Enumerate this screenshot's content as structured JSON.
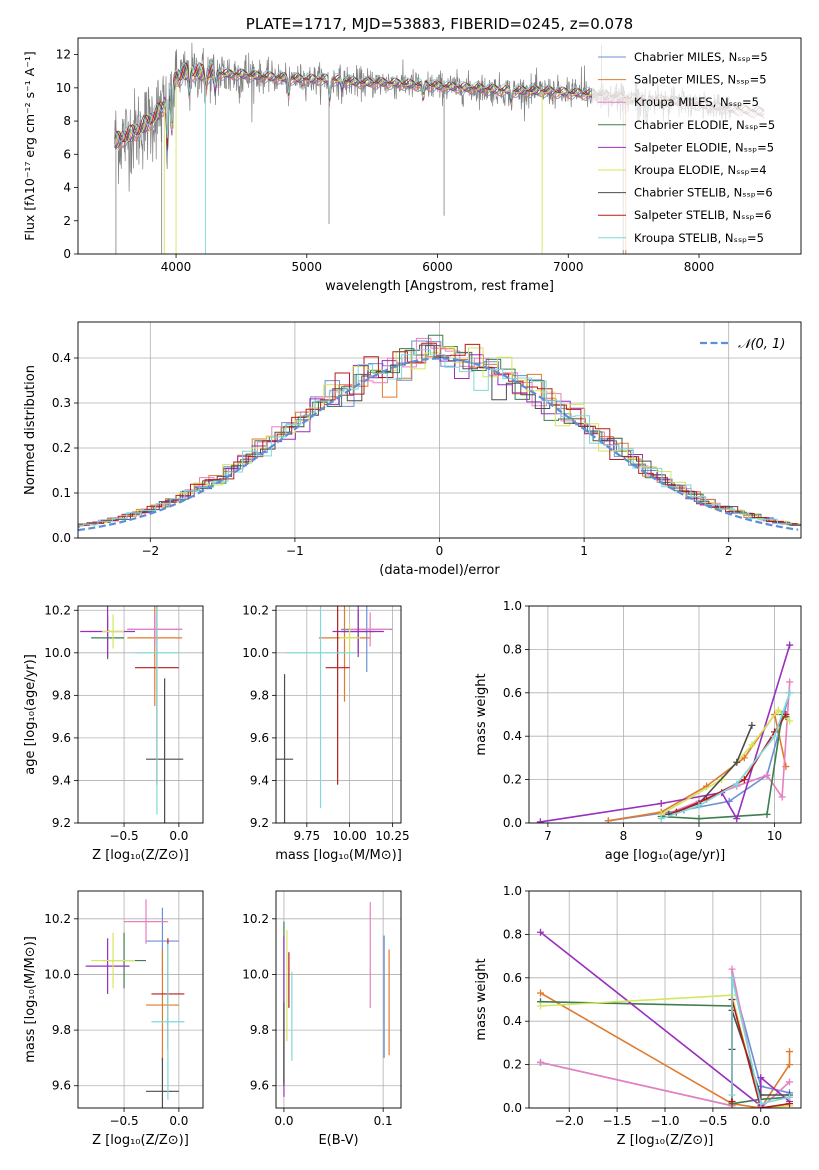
{
  "chart_data": [
    {
      "id": "spectrum",
      "type": "line",
      "title": "PLATE=1717, MJD=53883, FIBERID=0245, z=0.078",
      "xlabel": "wavelength [Angstrom, rest frame]",
      "ylabel": "Flux [fλ10⁻¹⁷ erg cm⁻² s⁻¹ A⁻¹]",
      "xlim": [
        3250,
        8780
      ],
      "ylim": [
        0,
        13
      ],
      "xticks": [
        4000,
        5000,
        6000,
        7000,
        8000
      ],
      "yticks": [
        0,
        2,
        4,
        6,
        8,
        10,
        12
      ],
      "grid": false,
      "legend_position": "top-right",
      "legend": [
        {
          "name": "Chabrier MILES, Nₛₛₚ=5",
          "color": "#6b8fd6"
        },
        {
          "name": "Salpeter MILES, Nₛₛₚ=5",
          "color": "#e07b2e"
        },
        {
          "name": "Kroupa MILES, Nₛₛₚ=5",
          "color": "#e87fbf"
        },
        {
          "name": "Chabrier ELODIE, Nₛₛₚ=5",
          "color": "#3e7d4e"
        },
        {
          "name": "Salpeter ELODIE, Nₛₛₚ=5",
          "color": "#9a2fbd"
        },
        {
          "name": "Kroupa ELODIE, Nₛₛₚ=4",
          "color": "#d4e65c"
        },
        {
          "name": "Chabrier STELIB, Nₛₛₚ=6",
          "color": "#4d4d4d"
        },
        {
          "name": "Salpeter STELIB, Nₛₛₚ=6",
          "color": "#b51d1d"
        },
        {
          "name": "Kroupa STELIB, Nₛₛₚ=5",
          "color": "#7fd8dc"
        }
      ],
      "data_color": "#808080",
      "continuum": {
        "x": [
          3530,
          3600,
          3700,
          3800,
          3900,
          4000,
          4100,
          4200,
          4300,
          4400,
          4500,
          4600,
          4800,
          5000,
          5200,
          5400,
          5600,
          5800,
          6000,
          6200,
          6400,
          6600,
          6800,
          7000,
          7200,
          7400,
          7600,
          7800,
          8000,
          8200,
          8400,
          8500
        ],
        "y": [
          6.8,
          7.0,
          7.4,
          8.0,
          8.8,
          10.6,
          11.0,
          10.9,
          10.9,
          10.8,
          10.8,
          10.7,
          10.6,
          10.5,
          10.5,
          10.3,
          10.3,
          10.2,
          10.1,
          10.0,
          9.9,
          9.8,
          9.8,
          9.7,
          9.6,
          9.4,
          9.3,
          9.2,
          9.0,
          8.8,
          8.6,
          8.5
        ]
      }
    },
    {
      "id": "residuals",
      "type": "step",
      "xlabel": "(data-model)/error",
      "ylabel": "Normed distribution",
      "xlim": [
        -2.5,
        2.5
      ],
      "ylim": [
        0,
        0.48
      ],
      "xticks": [
        -2,
        -1,
        0,
        1,
        2
      ],
      "yticks": [
        0.0,
        0.1,
        0.2,
        0.3,
        0.4
      ],
      "grid": true,
      "legend_position": "top-right",
      "legend": [
        {
          "name": "𝒩(0, 1)",
          "color": "#5b8fd6"
        }
      ],
      "bin_width": 0.1
    },
    {
      "id": "age-vs-Z",
      "type": "errorbar",
      "xlabel": "Z [log₁₀(Z/Z⊙)]",
      "ylabel": "age  [log₁₀(age/yr)]",
      "xlim": [
        -0.92,
        0.22
      ],
      "ylim": [
        9.2,
        10.22
      ],
      "xticks": [
        -0.5,
        0.0
      ],
      "yticks": [
        9.2,
        9.4,
        9.6,
        9.8,
        10.0,
        10.2
      ],
      "grid": true,
      "points": [
        {
          "x": -0.22,
          "y": 10.11,
          "xerr": 0.25,
          "yerr": 0.07,
          "color": "#6b8fd6"
        },
        {
          "x": -0.22,
          "y": 10.07,
          "xerr": 0.25,
          "yerr": 0.32,
          "color": "#e07b2e"
        },
        {
          "x": -0.22,
          "y": 10.11,
          "xerr": 0.25,
          "yerr": 0.08,
          "color": "#e87fbf"
        },
        {
          "x": -0.65,
          "y": 10.07,
          "xerr": 0.15,
          "yerr": 0.1,
          "color": "#3e7d4e"
        },
        {
          "x": -0.65,
          "y": 10.1,
          "xerr": 0.25,
          "yerr": 0.12,
          "color": "#9a2fbd"
        },
        {
          "x": -0.6,
          "y": 10.1,
          "xerr": 0.1,
          "yerr": 0.08,
          "color": "#d4e65c"
        },
        {
          "x": -0.13,
          "y": 9.5,
          "xerr": 0.17,
          "yerr": 0.38,
          "color": "#4d4d4d"
        },
        {
          "x": -0.2,
          "y": 9.93,
          "xerr": 0.2,
          "yerr": 0.55,
          "color": "#b51d1d"
        },
        {
          "x": -0.2,
          "y": 10.0,
          "xerr": 0.2,
          "yerr": 0.76,
          "color": "#7fd8dc"
        }
      ]
    },
    {
      "id": "age-vs-mass",
      "type": "errorbar",
      "xlabel": "mass [log₁₀(M/M⊙)]",
      "ylabel": "",
      "xlim": [
        9.57,
        10.3
      ],
      "ylim": [
        9.2,
        10.22
      ],
      "xticks": [
        9.75,
        10.0,
        10.25
      ],
      "yticks": [
        9.2,
        9.4,
        9.6,
        9.8,
        10.0,
        10.2
      ],
      "grid": true,
      "points": [
        {
          "x": 10.1,
          "y": 10.11,
          "xerr": 0.15,
          "yerr": 0.2,
          "color": "#6b8fd6"
        },
        {
          "x": 9.97,
          "y": 10.07,
          "xerr": 0.15,
          "yerr": 0.3,
          "color": "#e07b2e"
        },
        {
          "x": 10.12,
          "y": 10.11,
          "xerr": 0.12,
          "yerr": 0.08,
          "color": "#e87fbf"
        },
        {
          "x": 10.05,
          "y": 10.1,
          "xerr": 0.1,
          "yerr": 0.1,
          "color": "#3e7d4e"
        },
        {
          "x": 10.05,
          "y": 10.1,
          "xerr": 0.15,
          "yerr": 0.12,
          "color": "#9a2fbd"
        },
        {
          "x": 10.0,
          "y": 10.07,
          "xerr": 0.06,
          "yerr": 0.07,
          "color": "#d4e65c"
        },
        {
          "x": 9.62,
          "y": 9.5,
          "xerr": 0.05,
          "yerr": 0.4,
          "color": "#4d4d4d"
        },
        {
          "x": 9.93,
          "y": 9.93,
          "xerr": 0.07,
          "yerr": 0.55,
          "color": "#b51d1d"
        },
        {
          "x": 9.83,
          "y": 10.0,
          "xerr": 0.2,
          "yerr": 0.73,
          "color": "#7fd8dc"
        }
      ]
    },
    {
      "id": "weight-vs-age",
      "type": "line",
      "xlabel": "age  [log₁₀(age/yr)]",
      "ylabel": "mass weight",
      "xlim": [
        6.75,
        10.35
      ],
      "ylim": [
        0,
        1.0
      ],
      "xticks": [
        7,
        8,
        9,
        10
      ],
      "yticks": [
        0.0,
        0.2,
        0.4,
        0.6,
        0.8,
        1.0
      ],
      "grid": true,
      "series": [
        {
          "color": "#6b8fd6",
          "x": [
            7.8,
            8.8,
            9.4,
            9.9,
            10.2
          ],
          "y": [
            0.01,
            0.06,
            0.1,
            0.22,
            0.6
          ]
        },
        {
          "color": "#e07b2e",
          "x": [
            7.8,
            8.5,
            9.1,
            9.6,
            10.0,
            10.15
          ],
          "y": [
            0.01,
            0.05,
            0.17,
            0.3,
            0.5,
            0.26
          ]
        },
        {
          "color": "#e87fbf",
          "x": [
            8.5,
            9.0,
            9.5,
            9.9,
            10.1,
            10.2
          ],
          "y": [
            0.03,
            0.1,
            0.17,
            0.22,
            0.12,
            0.65
          ]
        },
        {
          "color": "#3e7d4e",
          "x": [
            8.5,
            9.0,
            9.9,
            10.1,
            10.15
          ],
          "y": [
            0.03,
            0.02,
            0.04,
            0.5,
            0.49
          ]
        },
        {
          "color": "#9a2fbd",
          "x": [
            6.9,
            8.5,
            9.3,
            9.5,
            10.2
          ],
          "y": [
            0.005,
            0.09,
            0.14,
            0.02,
            0.82
          ]
        },
        {
          "color": "#d4e65c",
          "x": [
            8.5,
            9.3,
            9.7,
            10.05,
            10.2
          ],
          "y": [
            0.04,
            0.2,
            0.36,
            0.52,
            0.47
          ]
        },
        {
          "color": "#4d4d4d",
          "x": [
            8.6,
            9.0,
            9.5,
            9.7
          ],
          "y": [
            0.04,
            0.09,
            0.28,
            0.45
          ]
        },
        {
          "color": "#b51d1d",
          "x": [
            8.7,
            9.1,
            9.6,
            10.0,
            10.15
          ],
          "y": [
            0.05,
            0.11,
            0.2,
            0.42,
            0.5
          ]
        },
        {
          "color": "#7fd8dc",
          "x": [
            8.5,
            9.0,
            9.5,
            10.0,
            10.2
          ],
          "y": [
            0.02,
            0.08,
            0.18,
            0.4,
            0.6
          ]
        }
      ]
    },
    {
      "id": "mass-vs-Z",
      "type": "errorbar",
      "xlabel": "Z [log₁₀(Z/Z⊙)]",
      "ylabel": "mass [log₁₀(M/M⊙)]",
      "xlim": [
        -0.92,
        0.22
      ],
      "ylim": [
        9.52,
        10.3
      ],
      "xticks": [
        -0.5,
        0.0
      ],
      "yticks": [
        9.6,
        9.8,
        10.0,
        10.2
      ],
      "grid": true,
      "points": [
        {
          "x": -0.15,
          "y": 10.12,
          "xerr": 0.15,
          "yerr": 0.12,
          "color": "#6b8fd6"
        },
        {
          "x": -0.15,
          "y": 9.89,
          "xerr": 0.15,
          "yerr": 0.2,
          "color": "#e07b2e"
        },
        {
          "x": -0.3,
          "y": 10.19,
          "xerr": 0.2,
          "yerr": 0.08,
          "color": "#e87fbf"
        },
        {
          "x": -0.5,
          "y": 10.05,
          "xerr": 0.2,
          "yerr": 0.1,
          "color": "#3e7d4e"
        },
        {
          "x": -0.65,
          "y": 10.03,
          "xerr": 0.2,
          "yerr": 0.1,
          "color": "#9a2fbd"
        },
        {
          "x": -0.6,
          "y": 10.05,
          "xerr": 0.2,
          "yerr": 0.1,
          "color": "#d4e65c"
        },
        {
          "x": -0.15,
          "y": 9.58,
          "xerr": 0.15,
          "yerr": 0.12,
          "color": "#4d4d4d"
        },
        {
          "x": -0.1,
          "y": 9.93,
          "xerr": 0.15,
          "yerr": 0.2,
          "color": "#b51d1d"
        },
        {
          "x": -0.1,
          "y": 9.83,
          "xerr": 0.15,
          "yerr": 0.28,
          "color": "#7fd8dc"
        }
      ]
    },
    {
      "id": "mass-vs-ebv",
      "type": "errorbar",
      "xlabel": "E(B-V)",
      "ylabel": "",
      "xlim": [
        -0.008,
        0.118
      ],
      "ylim": [
        9.52,
        10.3
      ],
      "xticks": [
        0.0,
        0.1
      ],
      "yticks": [
        9.6,
        9.8,
        10.0,
        10.2
      ],
      "grid": true,
      "points": [
        {
          "x": 0.101,
          "y": 9.92,
          "xerr": 0,
          "yerr": 0.22,
          "color": "#6b8fd6"
        },
        {
          "x": 0.106,
          "y": 9.9,
          "xerr": 0,
          "yerr": 0.19,
          "color": "#e07b2e"
        },
        {
          "x": 0.087,
          "y": 10.07,
          "xerr": 0,
          "yerr": 0.19,
          "color": "#e87fbf"
        },
        {
          "x": 0.0,
          "y": 9.9,
          "xerr": 0,
          "yerr": 0.29,
          "color": "#3e7d4e"
        },
        {
          "x": 0.0,
          "y": 9.85,
          "xerr": 0,
          "yerr": 0.29,
          "color": "#9a2fbd"
        },
        {
          "x": 0.003,
          "y": 9.96,
          "xerr": 0,
          "yerr": 0.2,
          "color": "#d4e65c"
        },
        {
          "x": 0.0,
          "y": 9.75,
          "xerr": 0,
          "yerr": 0.15,
          "color": "#4d4d4d"
        },
        {
          "x": 0.005,
          "y": 9.98,
          "xerr": 0,
          "yerr": 0.1,
          "color": "#b51d1d"
        },
        {
          "x": 0.008,
          "y": 9.85,
          "xerr": 0,
          "yerr": 0.16,
          "color": "#7fd8dc"
        }
      ]
    },
    {
      "id": "weight-vs-Z",
      "type": "line",
      "xlabel": "Z [log₁₀(Z/Z⊙)]",
      "ylabel": "mass weight",
      "xlim": [
        -2.42,
        0.42
      ],
      "ylim": [
        0,
        1.0
      ],
      "xticks": [
        -2.0,
        -1.5,
        -1.0,
        -0.5,
        0.0
      ],
      "yticks": [
        0.0,
        0.2,
        0.4,
        0.6,
        0.8,
        1.0
      ],
      "grid": true,
      "series": [
        {
          "color": "#6b8fd6",
          "x": [
            -2.3,
            -0.3,
            -0.3,
            0.0,
            0.3
          ],
          "y": [
            0.21,
            0.01,
            0.6,
            0.1,
            0.07
          ]
        },
        {
          "color": "#e07b2e",
          "x": [
            -2.3,
            -0.3,
            0.0,
            0.3,
            0.3
          ],
          "y": [
            0.53,
            0.02,
            0.0,
            0.2,
            0.26
          ]
        },
        {
          "color": "#e87fbf",
          "x": [
            -2.3,
            -0.3,
            -0.3,
            0.0,
            0.3
          ],
          "y": [
            0.21,
            0.01,
            0.64,
            0.0,
            0.12
          ]
        },
        {
          "color": "#3e7d4e",
          "x": [
            -2.3,
            -0.3,
            -0.3,
            0.0,
            0.3
          ],
          "y": [
            0.49,
            0.47,
            0.02,
            0.04,
            0.05
          ]
        },
        {
          "color": "#9a2fbd",
          "x": [
            -2.3,
            0.0,
            0.0,
            0.3
          ],
          "y": [
            0.81,
            0.01,
            0.14,
            0.03
          ]
        },
        {
          "color": "#d4e65c",
          "x": [
            -2.3,
            -0.3,
            0.0,
            0.3
          ],
          "y": [
            0.47,
            0.52,
            0.0,
            0.01
          ]
        },
        {
          "color": "#4d4d4d",
          "x": [
            -0.3,
            -0.3,
            0.0,
            0.3
          ],
          "y": [
            0.27,
            0.45,
            0.06,
            0.06
          ]
        },
        {
          "color": "#b51d1d",
          "x": [
            -0.3,
            -0.3,
            0.0,
            0.3
          ],
          "y": [
            0.03,
            0.5,
            0.0,
            0.02
          ]
        },
        {
          "color": "#7fd8dc",
          "x": [
            -0.3,
            -0.3,
            0.0,
            0.3
          ],
          "y": [
            0.06,
            0.6,
            0.02,
            0.05
          ]
        }
      ]
    }
  ]
}
